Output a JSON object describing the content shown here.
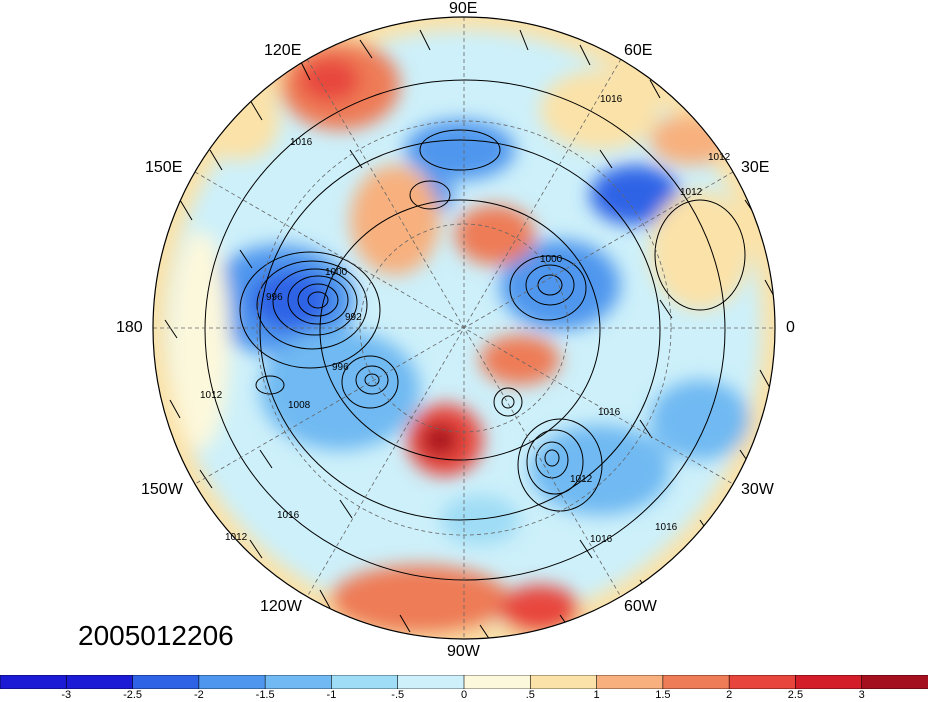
{
  "map": {
    "projection": "polar stereographic (north pole)",
    "longitude_labels": {
      "top": "90E",
      "upper_left": "120E",
      "upper_right": "60E",
      "left_upper": "150E",
      "right_upper": "30E",
      "left": "180",
      "right": "0",
      "left_lower": "150W",
      "right_lower": "30W",
      "lower_left": "120W",
      "lower_right": "60W",
      "bottom": "90W"
    },
    "contour_labels": [
      "1016",
      "1012",
      "1012",
      "1016",
      "1000",
      "996",
      "992",
      "996",
      "1008",
      "1012",
      "1016",
      "1012",
      "1016",
      "1000",
      "1012",
      "1016",
      "1016"
    ]
  },
  "timestamp": "2005012206",
  "colorbar": {
    "ticks": [
      "-3",
      "-2.5",
      "-2",
      "-1.5",
      "-1",
      "-.5",
      "0",
      ".5",
      "1",
      "1.5",
      "2",
      "2.5",
      "3"
    ],
    "colors": [
      "#1b1bd6",
      "#2f63e6",
      "#4f97ee",
      "#70b9f2",
      "#9fdcf5",
      "#cdf0fa",
      "#fcf8dc",
      "#fbe2a8",
      "#f7b07e",
      "#ee7c57",
      "#e8463c",
      "#d31e2a",
      "#a5101e"
    ]
  }
}
